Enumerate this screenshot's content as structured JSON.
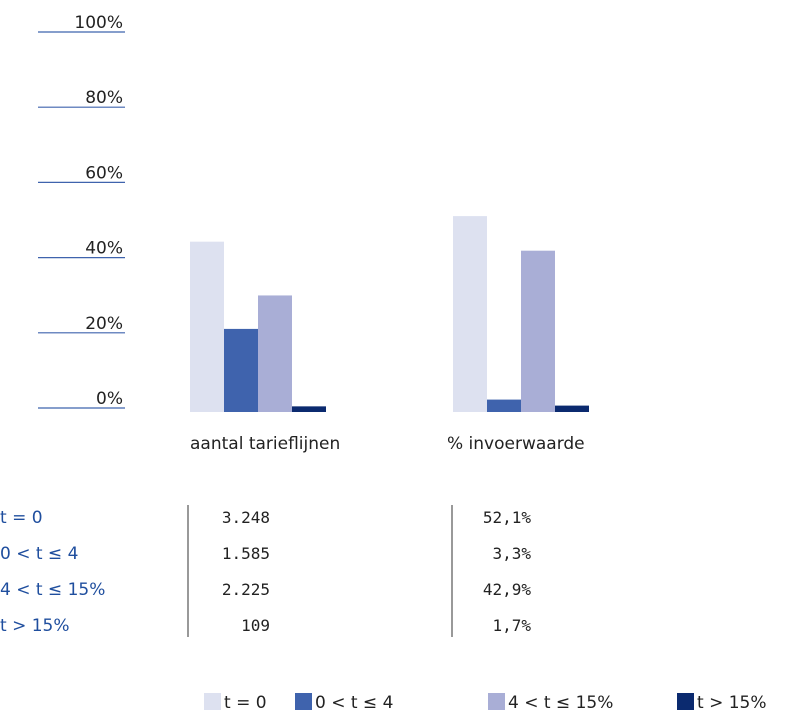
{
  "chart_data": {
    "type": "bar",
    "categories": [
      "aantal tarieflijnen",
      "% invoerwaarde"
    ],
    "series": [
      {
        "name": "t = 0",
        "color": "#dde1f0",
        "values": [
          45.3,
          52.1
        ]
      },
      {
        "name": "0 < t ≤ 4",
        "color": "#3f63ad",
        "values": [
          22.1,
          3.3
        ]
      },
      {
        "name": "4 < t ≤ 15%",
        "color": "#a9aed6",
        "values": [
          31.0,
          42.9
        ]
      },
      {
        "name": "t > 15%",
        "color": "#0b2a6f",
        "values": [
          1.5,
          1.7
        ]
      }
    ],
    "ylim": [
      0,
      100
    ],
    "yticks": [
      {
        "value": 0,
        "label": "0%"
      },
      {
        "value": 20,
        "label": "20%"
      },
      {
        "value": 40,
        "label": "40%"
      },
      {
        "value": 60,
        "label": "60%"
      },
      {
        "value": 80,
        "label": "80%"
      },
      {
        "value": 100,
        "label": "100%"
      }
    ],
    "legend": "bottom",
    "table": {
      "rows": [
        [
          "t = 0",
          "3.248",
          "52,1%"
        ],
        [
          "0 < t ≤ 4",
          "1.585",
          "3,3%"
        ],
        [
          "4 < t ≤ 15%",
          "2.225",
          "42,9%"
        ],
        [
          "t > 15%",
          "109",
          "1,7%"
        ]
      ]
    }
  }
}
